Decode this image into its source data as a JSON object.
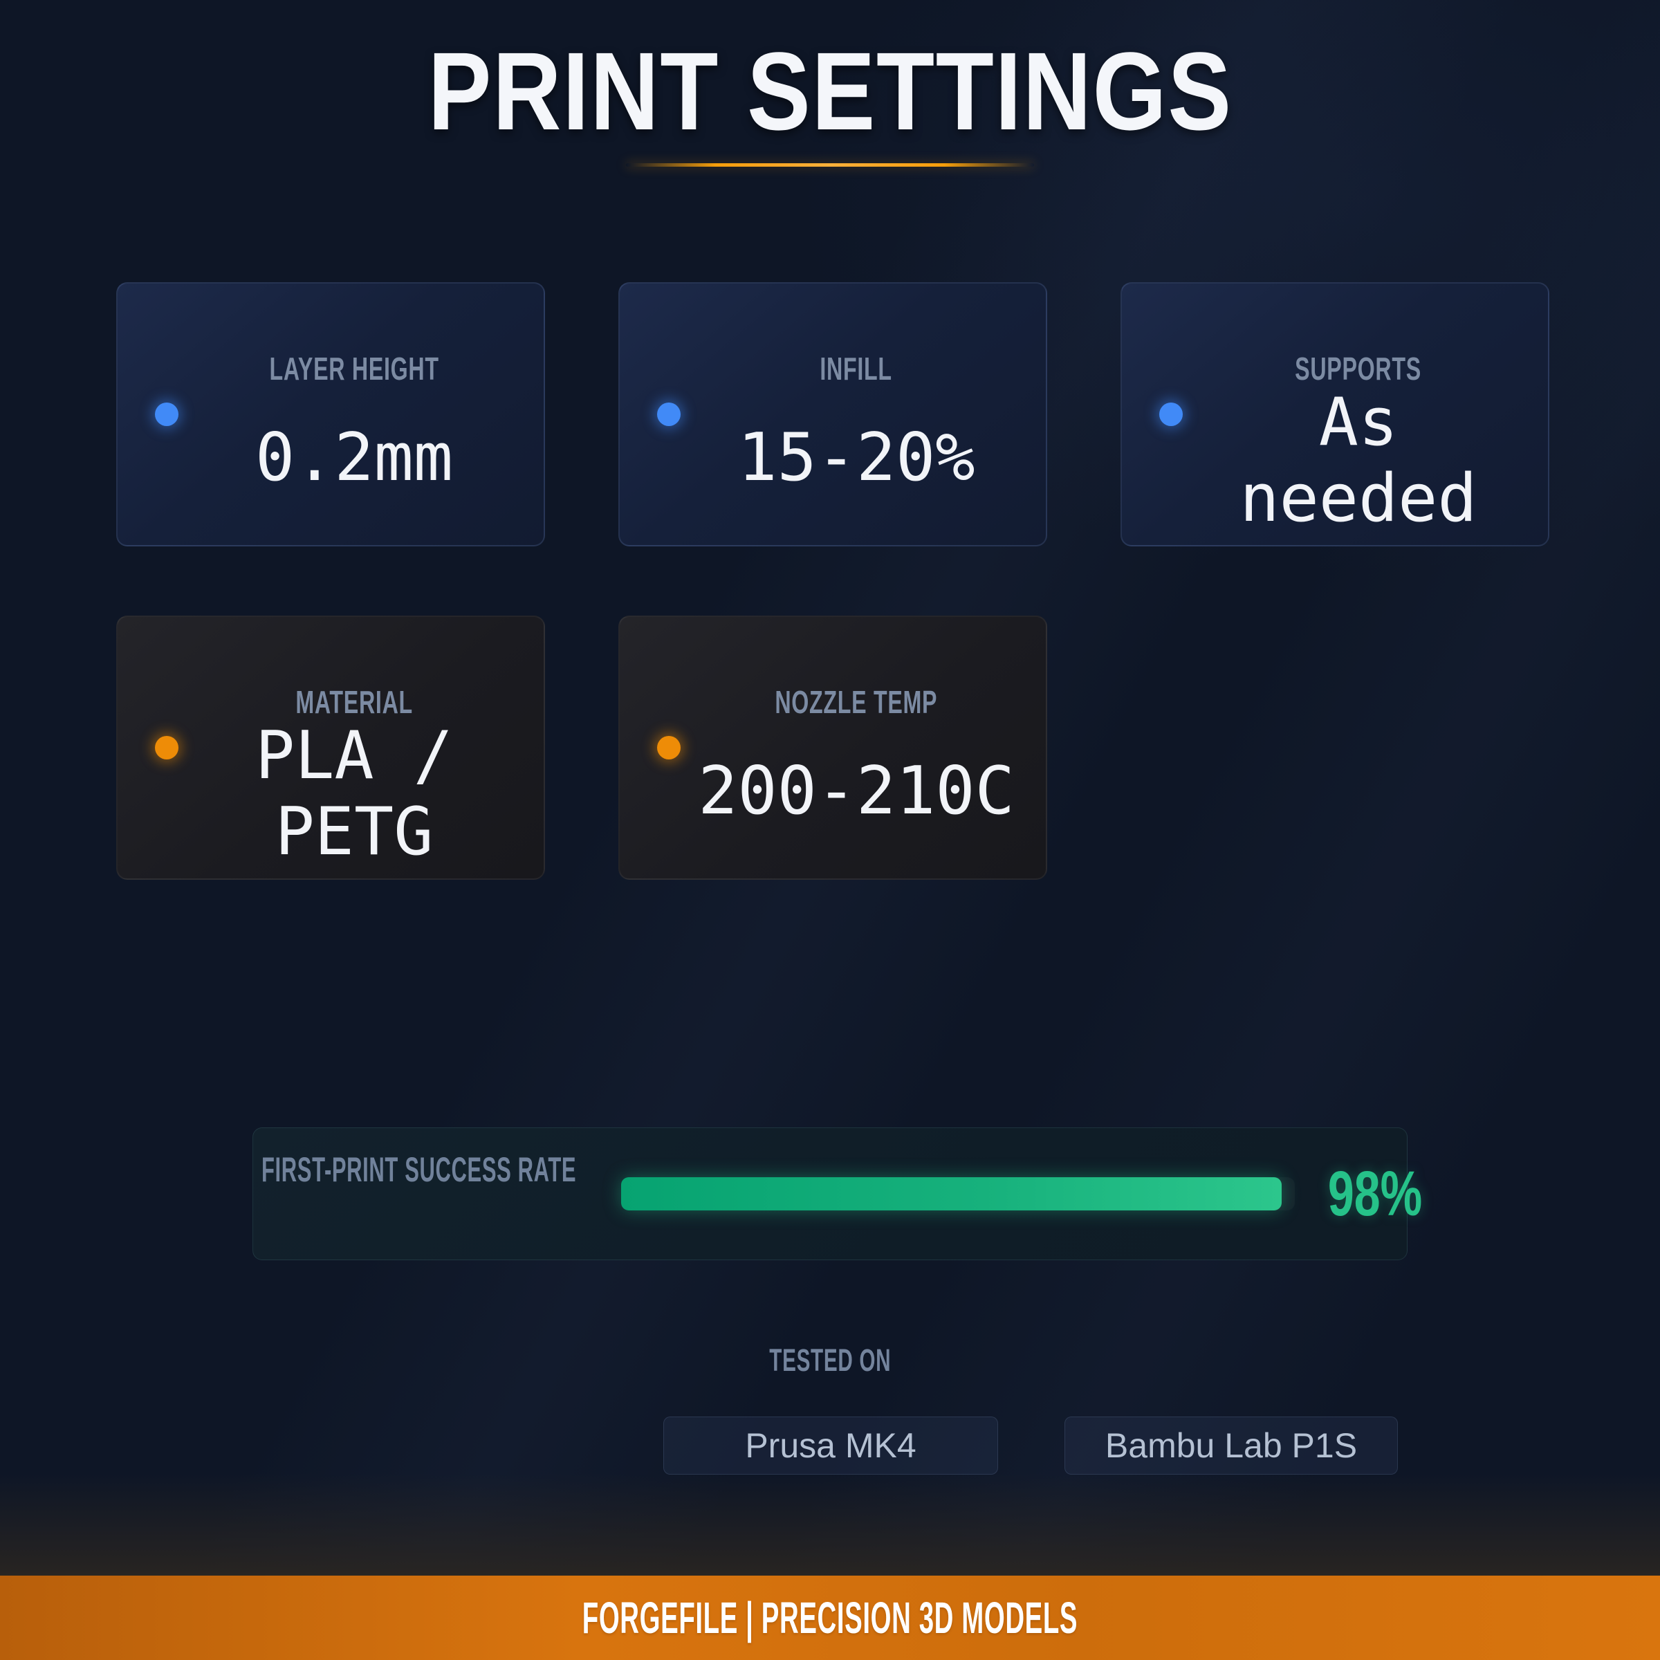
{
  "title": "PRINT SETTINGS",
  "accent": {
    "orange": "#d9750e",
    "blue_dot": "#418af7",
    "orange_dot": "#ee8c07",
    "green": "#26c289",
    "background": "#0e1626"
  },
  "cards": [
    {
      "label": "LAYER HEIGHT",
      "value": "0.2mm",
      "dot_color": "#418af7"
    },
    {
      "label": "INFILL",
      "value": "15-20%",
      "dot_color": "#418af7"
    },
    {
      "label": "SUPPORTS",
      "value": "As needed",
      "dot_color": "#418af7"
    },
    {
      "label": "MATERIAL",
      "value": "PLA / PETG",
      "dot_color": "#ee8c07"
    },
    {
      "label": "NOZZLE TEMP",
      "value": "200-210C",
      "dot_color": "#ee8c07"
    }
  ],
  "success_rate": {
    "label": "FIRST-PRINT SUCCESS RATE",
    "value": "98%",
    "percent": 98,
    "bar_color": "#17b17c"
  },
  "tested_on": {
    "label": "TESTED ON",
    "printers": [
      "Prusa MK4",
      "Bambu Lab P1S"
    ]
  },
  "footer": {
    "text": "FORGEFILE | PRECISION 3D MODELS"
  }
}
